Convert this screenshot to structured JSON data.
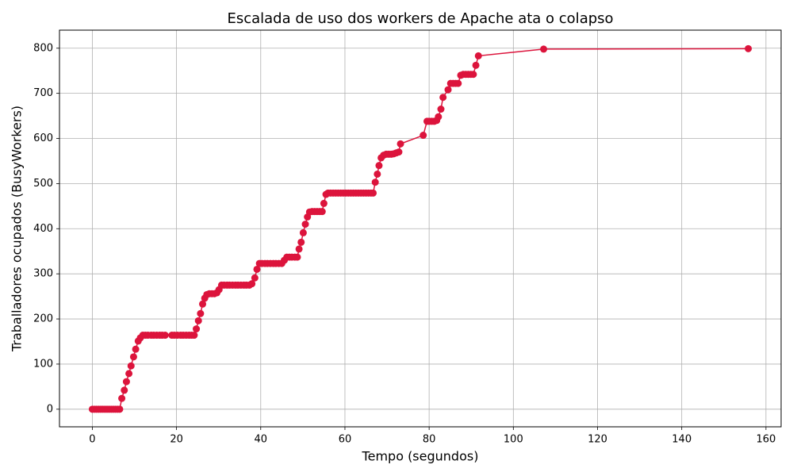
{
  "chart_data": {
    "type": "line",
    "title": "Escalada de uso dos workers de Apache ata o colapso",
    "xlabel": "Tempo (segundos)",
    "ylabel": "Traballadores ocupados (BusyWorkers)",
    "color": "#dc143c",
    "grid": true,
    "xlim": [
      -7.8,
      163.6
    ],
    "ylim": [
      -39,
      840
    ],
    "xticks": [
      0,
      20,
      40,
      60,
      80,
      100,
      120,
      140,
      160
    ],
    "yticks": [
      0,
      100,
      200,
      300,
      400,
      500,
      600,
      700,
      800
    ],
    "x": [
      0,
      0.5,
      1,
      1.5,
      2,
      2.5,
      3,
      3.5,
      4,
      4.5,
      5,
      5.5,
      6,
      6.5,
      7,
      7.6,
      8.1,
      8.7,
      9.2,
      9.8,
      10.3,
      10.9,
      11.4,
      12,
      12.6,
      13.2,
      14,
      14.6,
      15.3,
      16,
      16.6,
      17.3,
      18.9,
      19.5,
      20.2,
      21,
      21.6,
      22.3,
      23,
      23.6,
      24.2,
      24.7,
      25.2,
      25.7,
      26.2,
      26.7,
      27.2,
      27.8,
      28.4,
      29,
      29.6,
      30.1,
      30.7,
      31.3,
      32,
      32.6,
      33.3,
      34,
      34.6,
      35.3,
      36,
      36.6,
      37.3,
      37.9,
      38.6,
      39.1,
      39.7,
      40.3,
      41,
      41.6,
      42.3,
      43,
      43.6,
      44.3,
      45,
      45.6,
      46.2,
      46.8,
      47.4,
      48.1,
      48.7,
      49.1,
      49.6,
      50.1,
      50.6,
      51.1,
      51.6,
      52.2,
      52.8,
      53.4,
      54,
      54.6,
      55,
      55.5,
      56,
      56.6,
      57.2,
      57.8,
      58.4,
      59,
      59.6,
      60.2,
      60.8,
      61.4,
      62,
      62.6,
      63.2,
      63.8,
      64.4,
      65,
      65.6,
      66.2,
      66.7,
      67.2,
      67.7,
      68.1,
      68.6,
      69.2,
      69.8,
      70.4,
      71,
      71.6,
      72.2,
      72.8,
      73.2,
      78.6,
      79.5,
      80,
      80.6,
      81.2,
      81.8,
      82.2,
      82.8,
      83.3,
      84.5,
      85.1,
      85.7,
      86.3,
      86.9,
      87.5,
      88.1,
      88.7,
      89.3,
      89.9,
      90.5,
      91.1,
      91.7,
      107.2,
      155.8
    ],
    "values": [
      0,
      0,
      0,
      0,
      0,
      0,
      0,
      0,
      0,
      0,
      0,
      0,
      0,
      0,
      24,
      42,
      61,
      79,
      96,
      116,
      133,
      151,
      158,
      164,
      164,
      164,
      164,
      164,
      164,
      164,
      164,
      164,
      164,
      164,
      164,
      164,
      164,
      164,
      164,
      164,
      164,
      178,
      196,
      212,
      233,
      246,
      254,
      256,
      256,
      256,
      258,
      265,
      275,
      275,
      275,
      275,
      275,
      275,
      275,
      275,
      275,
      275,
      275,
      278,
      291,
      310,
      323,
      323,
      323,
      323,
      323,
      323,
      323,
      323,
      323,
      330,
      337,
      337,
      337,
      337,
      337,
      355,
      370,
      391,
      410,
      426,
      437,
      438,
      438,
      438,
      438,
      438,
      456,
      476,
      479,
      479,
      479,
      479,
      479,
      479,
      479,
      479,
      479,
      479,
      479,
      479,
      479,
      479,
      479,
      479,
      479,
      479,
      479,
      503,
      521,
      540,
      557,
      563,
      565,
      565,
      565,
      566,
      568,
      570,
      588,
      607,
      638,
      638,
      638,
      638,
      640,
      648,
      665,
      691,
      708,
      722,
      722,
      722,
      722,
      740,
      742,
      742,
      742,
      742,
      742,
      762,
      783,
      798,
      799
    ]
  }
}
